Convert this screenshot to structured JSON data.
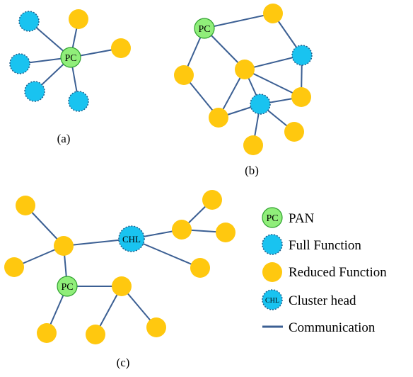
{
  "colors": {
    "edge": "#3b5f93",
    "pan_fill": "#90ee7a",
    "pan_stroke": "#2fa12f",
    "full_fill": "#19c3f0",
    "full_stroke": "#1f5f8c",
    "reduced_fill": "#ffc80f",
    "cluster_fill": "#19c3f0",
    "cluster_stroke": "#1f5f8c",
    "text": "#000000"
  },
  "node_labels": {
    "pan": "PC",
    "cluster": "CHL"
  },
  "captions": {
    "a": "(a)",
    "b": "(b)",
    "c": "(c)"
  },
  "legend": [
    {
      "kind": "pan",
      "symbol_label": "PC",
      "label": "PAN"
    },
    {
      "kind": "full",
      "symbol_label": "",
      "label": "Full Function"
    },
    {
      "kind": "reduced",
      "symbol_label": "",
      "label": "Reduced Function"
    },
    {
      "kind": "cluster",
      "symbol_label": "CHL",
      "label": "Cluster head"
    },
    {
      "kind": "line",
      "symbol_label": "",
      "label": "Communication"
    }
  ]
}
